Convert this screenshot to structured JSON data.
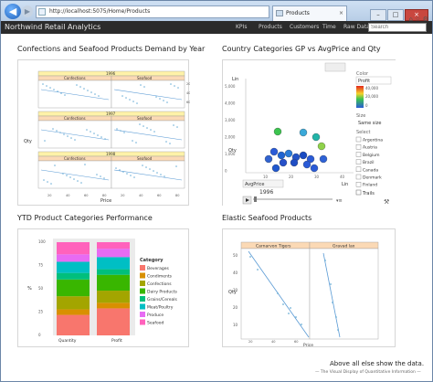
{
  "browser": {
    "address": "http://localhost:5075/Home/Products",
    "tab_title": "Products",
    "tab_close": "×",
    "min": "–",
    "max": "□",
    "close": "×",
    "tools": "⌂ ☆ ⚙"
  },
  "nav": {
    "brand": "Northwind Retail Analytics",
    "links": [
      "KPIs",
      "Products",
      "Customers",
      "Time",
      "Raw Data"
    ],
    "search_placeholder": "Search"
  },
  "sections": {
    "s1": {
      "title": "Confections and Seafood Products Demand by Year"
    },
    "s2": {
      "title": "Country Categories GP vs AvgPrice and Qty"
    },
    "s3": {
      "title": "YTD Product Categories Performance"
    },
    "s4": {
      "title": "Elastic Seafood Products"
    }
  },
  "chart1": {
    "years": [
      "1996",
      "1997",
      "1998"
    ],
    "cats": [
      "Confections",
      "Seafood"
    ],
    "xlabel": "Price",
    "ylabel": "Qty",
    "xticks": [
      "20",
      "40",
      "60",
      "80"
    ],
    "yticks": [
      "20",
      "40",
      "60"
    ]
  },
  "chart2": {
    "ylabel": "Qty",
    "xlabel": "AvgPrice",
    "lin_y": "Lin",
    "lin_x": "Lin",
    "year": "1996",
    "yticks": [
      "5,000",
      "4,000",
      "3,000",
      "2,000",
      "1,000",
      "0"
    ],
    "xticks": [
      "10",
      "20",
      "30",
      "40"
    ],
    "color_label": "Color",
    "color_value": "Profit",
    "legend_ticks": [
      "40,000",
      "20,000",
      "0"
    ],
    "size_label": "Size",
    "size_value": "Same size",
    "select_label": "Select",
    "countries": [
      "Argentina",
      "Austria",
      "Belgium",
      "Brazil",
      "Canada",
      "Denmark",
      "Finland"
    ],
    "trails": "Trails"
  },
  "chart3": {
    "legend_title": "Category",
    "legend": [
      {
        "name": "Beverages",
        "color": "#f8766d"
      },
      {
        "name": "Condiments",
        "color": "#d89000"
      },
      {
        "name": "Confections",
        "color": "#a3a500"
      },
      {
        "name": "Dairy Products",
        "color": "#39b600"
      },
      {
        "name": "Grains/Cereals",
        "color": "#00bf7d"
      },
      {
        "name": "Meat/Poultry",
        "color": "#00bfc4"
      },
      {
        "name": "Produce",
        "color": "#e76bf3"
      },
      {
        "name": "Seafood",
        "color": "#ff62bc"
      }
    ],
    "ylabel": "%",
    "yticks": [
      "100",
      "75",
      "50",
      "25",
      "0"
    ],
    "xcats": [
      "Quantity",
      "Profit"
    ]
  },
  "chart4": {
    "strips": [
      "Carnarvon Tigers",
      "Gravad lax"
    ],
    "xlabel": "Price",
    "ylabel": "Qty",
    "yticks": [
      "50",
      "40",
      "30",
      "20",
      "10"
    ],
    "xticks": [
      "20",
      "40",
      "60"
    ]
  },
  "footer": {
    "line1": "Above all else show the data.",
    "line2": "— The Visual Display of Quantitative Information —"
  }
}
